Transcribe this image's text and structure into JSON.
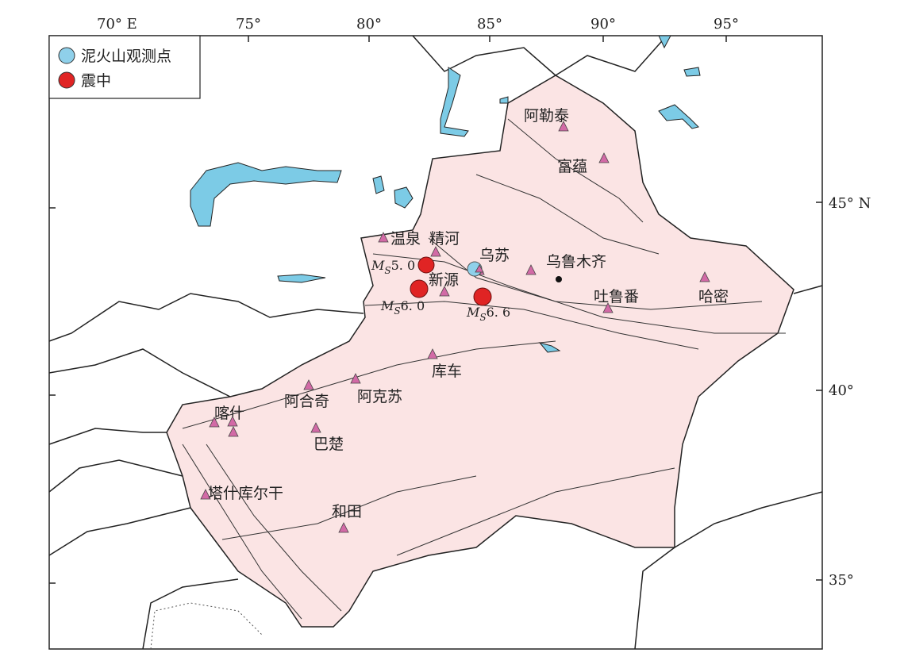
{
  "colors": {
    "region_fill": "#fbe4e4",
    "water": "#7ccbe6",
    "mud_volcano": "#8fd0ea",
    "epicenter": "#e02424",
    "station": "#d26aa6"
  },
  "axes": {
    "longitude_labels": [
      "70° E",
      "75°",
      "80°",
      "85°",
      "90°",
      "95°"
    ],
    "latitude_labels": [
      "45° N",
      "40°",
      "35°"
    ]
  },
  "legend": [
    {
      "label": "泥火山观测点",
      "symbol": "blue-circle"
    },
    {
      "label": "震中",
      "symbol": "red-circle"
    }
  ],
  "stations": [
    "阿勒泰",
    "富蕴",
    "温泉",
    "精河",
    "乌苏",
    "乌鲁木齐",
    "吐鲁番",
    "哈密",
    "新源",
    "库车",
    "阿克苏",
    "阿合奇",
    "喀什",
    "巴楚",
    "塔什库尔干",
    "和田"
  ],
  "earthquakes": [
    {
      "label_m": "M",
      "label_s": "S",
      "label_v": "5. 0"
    },
    {
      "label_m": "M",
      "label_s": "S",
      "label_v": "6. 0"
    },
    {
      "label_m": "M",
      "label_s": "S",
      "label_v": "6. 6"
    }
  ]
}
